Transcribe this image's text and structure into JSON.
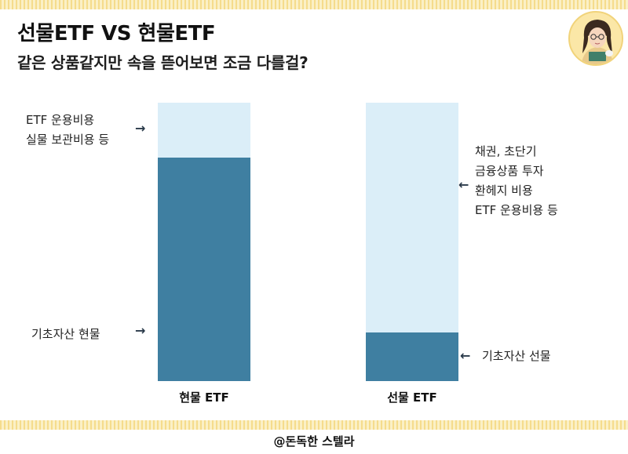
{
  "header": {
    "title": "선물ETF VS 현물ETF",
    "subtitle": "같은 상품같지만 속을 뜯어보면 조금 다를걸?"
  },
  "spot_bar": {
    "label": "현물 ETF",
    "top_note": [
      "ETF 운용비용",
      "실물 보관비용 등"
    ],
    "bottom_note": "기초자산 현물"
  },
  "futures_bar": {
    "label": "선물 ETF",
    "top_note": [
      "채권, 초단기",
      "금융상품 투자",
      "환헤지 비용",
      "ETF 운용비용 등"
    ],
    "bottom_note": "기초자산 선물"
  },
  "arrows": {
    "right": "→",
    "left": "←"
  },
  "colors": {
    "light_segment": "#dbeef8",
    "dark_segment": "#3f7fa1",
    "stripe": "#f5dc8c"
  },
  "footer": {
    "credit": "@돈독한 스텔라"
  }
}
